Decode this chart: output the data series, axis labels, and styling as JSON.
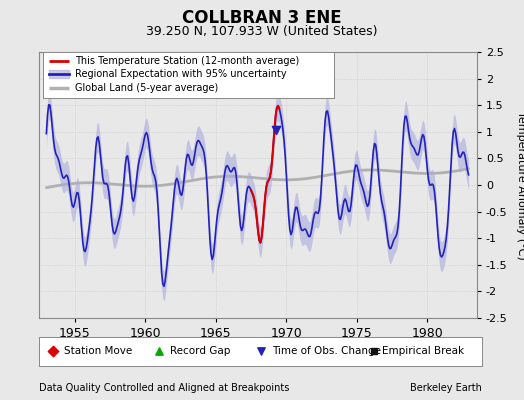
{
  "title": "COLLBRAN 3 ENE",
  "subtitle": "39.250 N, 107.933 W (United States)",
  "ylabel": "Temperature Anomaly (°C)",
  "xlabel_left": "Data Quality Controlled and Aligned at Breakpoints",
  "xlabel_right": "Berkeley Earth",
  "ylim": [
    -2.5,
    2.5
  ],
  "xlim": [
    1952.5,
    1983.5
  ],
  "yticks": [
    -2.5,
    -2,
    -1.5,
    -1,
    -0.5,
    0,
    0.5,
    1,
    1.5,
    2,
    2.5
  ],
  "xticks": [
    1955,
    1960,
    1965,
    1970,
    1975,
    1980
  ],
  "bg_color": "#e8e8e8",
  "plot_bg_color": "#e8e8e8",
  "regional_line_color": "#2222bb",
  "regional_fill_color": "#aaaadd",
  "station_line_color": "#dd0000",
  "global_line_color": "#b0b0b0",
  "obs_change_color": "#2222bb",
  "station_move_color": "#dd0000",
  "record_gap_color": "#00aa00",
  "empirical_break_color": "#111111",
  "grid_color": "#cccccc"
}
